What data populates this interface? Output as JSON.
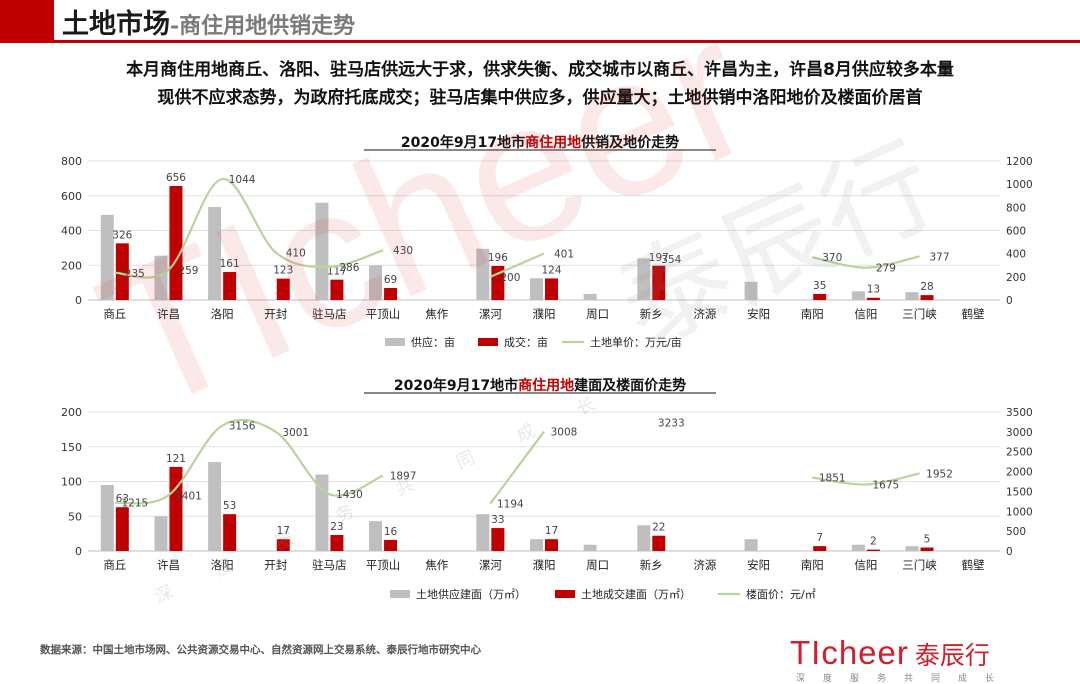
{
  "header": {
    "title": "土地市场",
    "subtitle": "-商住用地供销走势"
  },
  "summary": {
    "line1": "本月商住用地商丘、洛阳、驻马店供远大于求，供求失衡、成交城市以商丘、许昌为主，许昌8月供应较多本量",
    "line2": "现供不应求态势，为政府托底成交；驻马店集中供应多，供应量大；土地供销中洛阳地价及楼面价居首"
  },
  "footer": {
    "source": "数据来源：中国土地市场网、公共资源交易中心、自然资源网上交易系统、泰辰行地市研究中心"
  },
  "logo": {
    "brand": "TIcheer",
    "name_cn": "泰辰行",
    "slogan": "深度服务共同成长"
  },
  "colors": {
    "supply": "#bfbfbf",
    "deal": "#c00000",
    "price_line": "#b9d39a",
    "accent": "#c00000"
  },
  "chart_data": [
    {
      "type": "bar",
      "title_prefix": "2020年9月17地市",
      "title_highlight": "商住用地",
      "title_suffix": "供销及地价走势",
      "categories": [
        "商丘",
        "许昌",
        "洛阳",
        "开封",
        "驻马店",
        "平顶山",
        "焦作",
        "漯河",
        "濮阳",
        "周口",
        "新乡",
        "济源",
        "安阳",
        "南阳",
        "信阳",
        "三门峡",
        "鹤壁"
      ],
      "ylim": [
        0,
        800
      ],
      "yticks": [
        0,
        200,
        400,
        600,
        800
      ],
      "y2lim": [
        0,
        1200
      ],
      "y2ticks": [
        0,
        200,
        400,
        600,
        800,
        1000,
        1200
      ],
      "series": [
        {
          "name": "供应：亩",
          "axis": "left",
          "kind": "bar",
          "values": [
            490,
            255,
            535,
            0,
            560,
            200,
            0,
            295,
            125,
            35,
            240,
            0,
            105,
            0,
            50,
            45,
            0
          ],
          "labels": [
            "",
            "",
            "",
            "",
            "",
            "",
            "",
            "",
            "",
            "",
            "",
            "",
            "",
            "",
            "",
            "",
            ""
          ]
        },
        {
          "name": "成交：亩",
          "axis": "left",
          "kind": "bar",
          "values": [
            326,
            656,
            161,
            123,
            117,
            69,
            0,
            196,
            124,
            0,
            197,
            0,
            0,
            35,
            13,
            28,
            0
          ],
          "labels": [
            "326",
            "656",
            "161",
            "123",
            "117",
            "69",
            "",
            "196",
            "124",
            "",
            "197",
            "",
            "",
            "35",
            "13",
            "28",
            ""
          ]
        },
        {
          "name": "土地单价：万元/亩",
          "axis": "right",
          "kind": "line",
          "values": [
            235,
            259,
            1044,
            410,
            286,
            430,
            null,
            200,
            401,
            null,
            354,
            null,
            null,
            370,
            279,
            377,
            null
          ],
          "labels": [
            "235",
            "259",
            "1044",
            "410",
            "286",
            "430",
            "",
            "200",
            "401",
            "",
            "354",
            "",
            "",
            "370",
            "279",
            "377",
            ""
          ]
        }
      ]
    },
    {
      "type": "bar",
      "title_prefix": "2020年9月17地市",
      "title_highlight": "商住用地",
      "title_suffix": "建面及楼面价走势",
      "categories": [
        "商丘",
        "许昌",
        "洛阳",
        "开封",
        "驻马店",
        "平顶山",
        "焦作",
        "漯河",
        "濮阳",
        "周口",
        "新乡",
        "济源",
        "安阳",
        "南阳",
        "信阳",
        "三门峡",
        "鹤壁"
      ],
      "ylim": [
        0,
        200
      ],
      "yticks": [
        0,
        50,
        100,
        150,
        200
      ],
      "y2lim": [
        0,
        3500
      ],
      "y2ticks": [
        0,
        500,
        1000,
        1500,
        2000,
        2500,
        3000,
        3500
      ],
      "series": [
        {
          "name": "土地供应建面（万㎡）",
          "axis": "left",
          "kind": "bar",
          "values": [
            95,
            50,
            128,
            0,
            110,
            43,
            0,
            53,
            17,
            9,
            37,
            0,
            17,
            0,
            9,
            7,
            0
          ],
          "labels": [
            "",
            "",
            "",
            "",
            "",
            "",
            "",
            "",
            "",
            "",
            "",
            "",
            "",
            "",
            "",
            "",
            ""
          ]
        },
        {
          "name": "土地成交建面（万㎡）",
          "axis": "left",
          "kind": "bar",
          "values": [
            63,
            121,
            53,
            17,
            23,
            16,
            0,
            33,
            17,
            0,
            22,
            0,
            0,
            7,
            2,
            5,
            0
          ],
          "labels": [
            "63",
            "121",
            "53",
            "17",
            "23",
            "16",
            "",
            "33",
            "17",
            "",
            "22",
            "",
            "",
            "7",
            "2",
            "5",
            ""
          ]
        },
        {
          "name": "楼面价：元/㎡",
          "axis": "right",
          "kind": "line",
          "values": [
            1215,
            1401,
            3156,
            3001,
            1430,
            1897,
            null,
            1194,
            3008,
            null,
            3233,
            null,
            null,
            1851,
            1675,
            1952,
            null
          ],
          "labels": [
            "1215",
            "1401",
            "3156",
            "3001",
            "1430",
            "1897",
            "",
            "1194",
            "3008",
            "",
            "3233",
            "",
            "",
            "1851",
            "1675",
            "1952",
            ""
          ]
        }
      ]
    }
  ]
}
